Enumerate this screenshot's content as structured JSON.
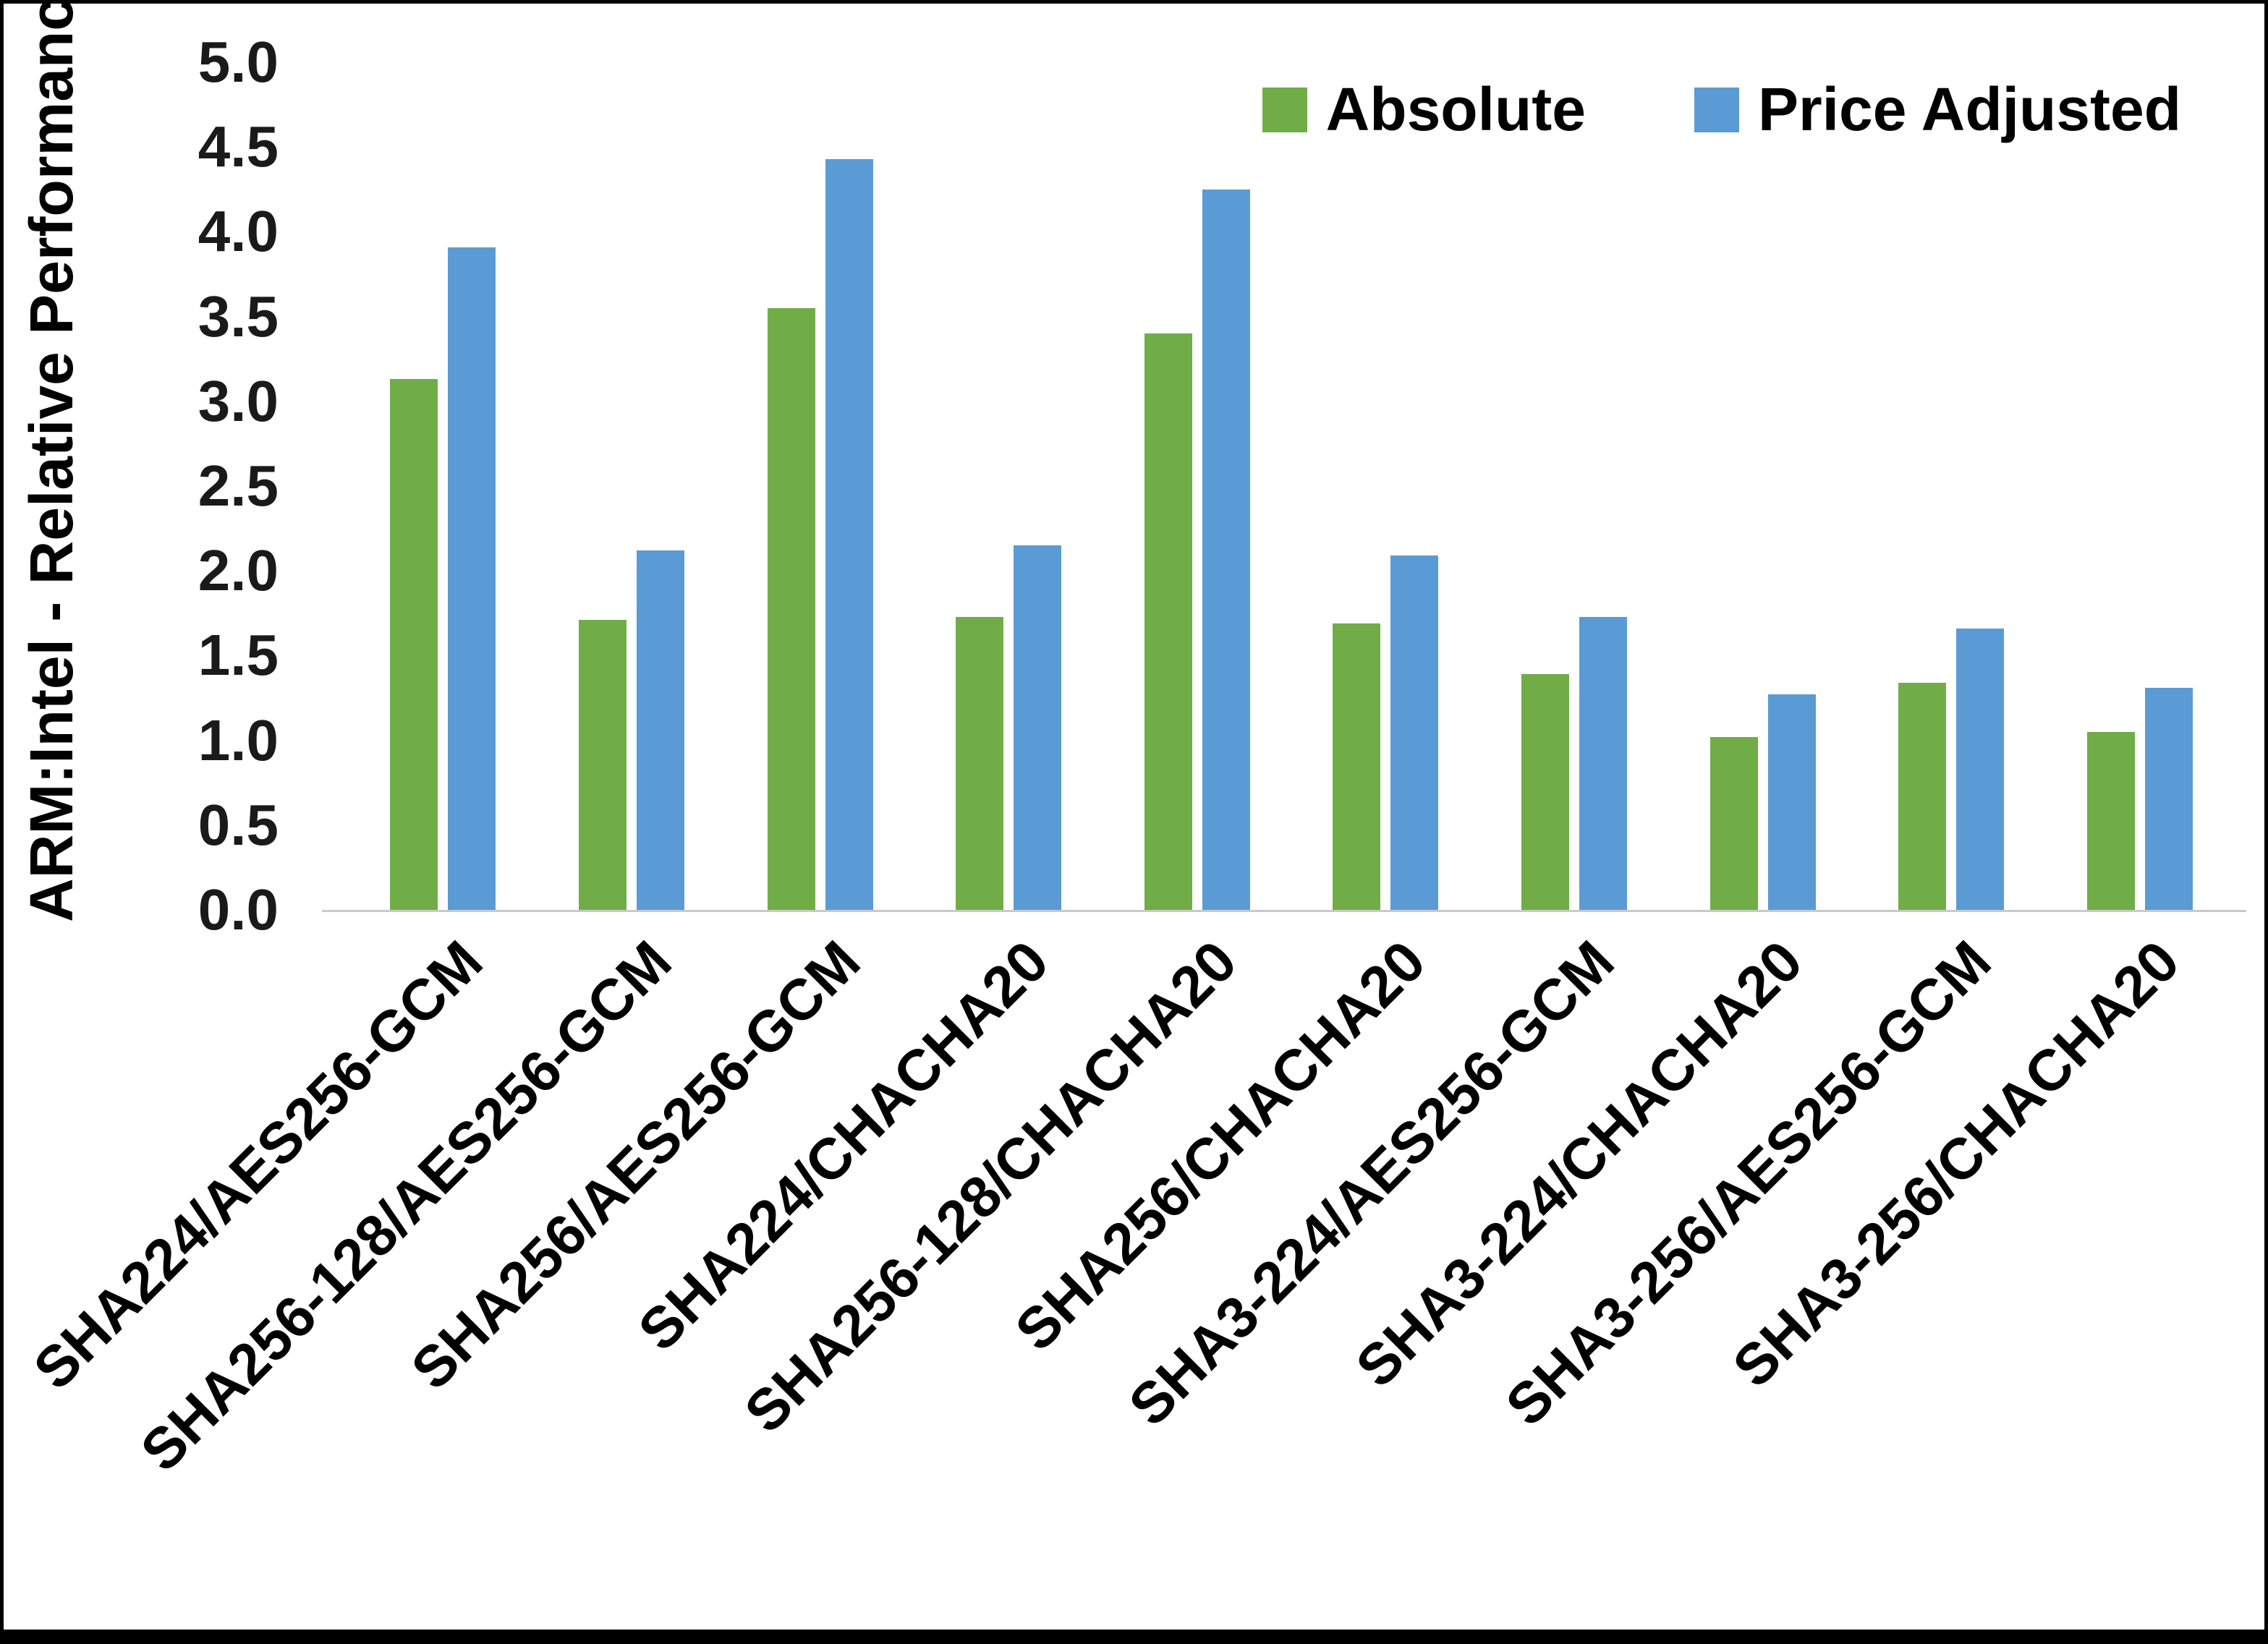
{
  "chart_data": {
    "type": "bar",
    "title": "",
    "xlabel": "",
    "ylabel": "ARM:Intel - Relative Performance",
    "ylim": [
      0,
      5
    ],
    "ytick_step": 0.5,
    "yticks": [
      "0.0",
      "0.5",
      "1.0",
      "1.5",
      "2.0",
      "2.5",
      "3.0",
      "3.5",
      "4.0",
      "4.5",
      "5.0"
    ],
    "grid": false,
    "legend_position": "top-right",
    "axis_line_color": "#c9c9c9",
    "categories": [
      "SHA224/AES256-GCM",
      "SHA256-128/AES256-GCM",
      "SHA256/AES256-GCM",
      "SHA224/CHACHA20",
      "SHA256-128/CHACHA20",
      "SHA256/CHACHA20",
      "SHA3-224/AES256-GCM",
      "SHA3-224/CHACHA20",
      "SHA3-256/AES256-GCM",
      "SHA3-256/CHACHA20"
    ],
    "series": [
      {
        "name": "Absolute",
        "color": "#70AD47",
        "values": [
          3.13,
          1.71,
          3.55,
          1.73,
          3.4,
          1.69,
          1.39,
          1.02,
          1.34,
          1.05
        ]
      },
      {
        "name": "Price Adjusted",
        "color": "#5B9BD5",
        "values": [
          3.91,
          2.12,
          4.43,
          2.15,
          4.25,
          2.09,
          1.73,
          1.27,
          1.66,
          1.31
        ]
      }
    ]
  }
}
